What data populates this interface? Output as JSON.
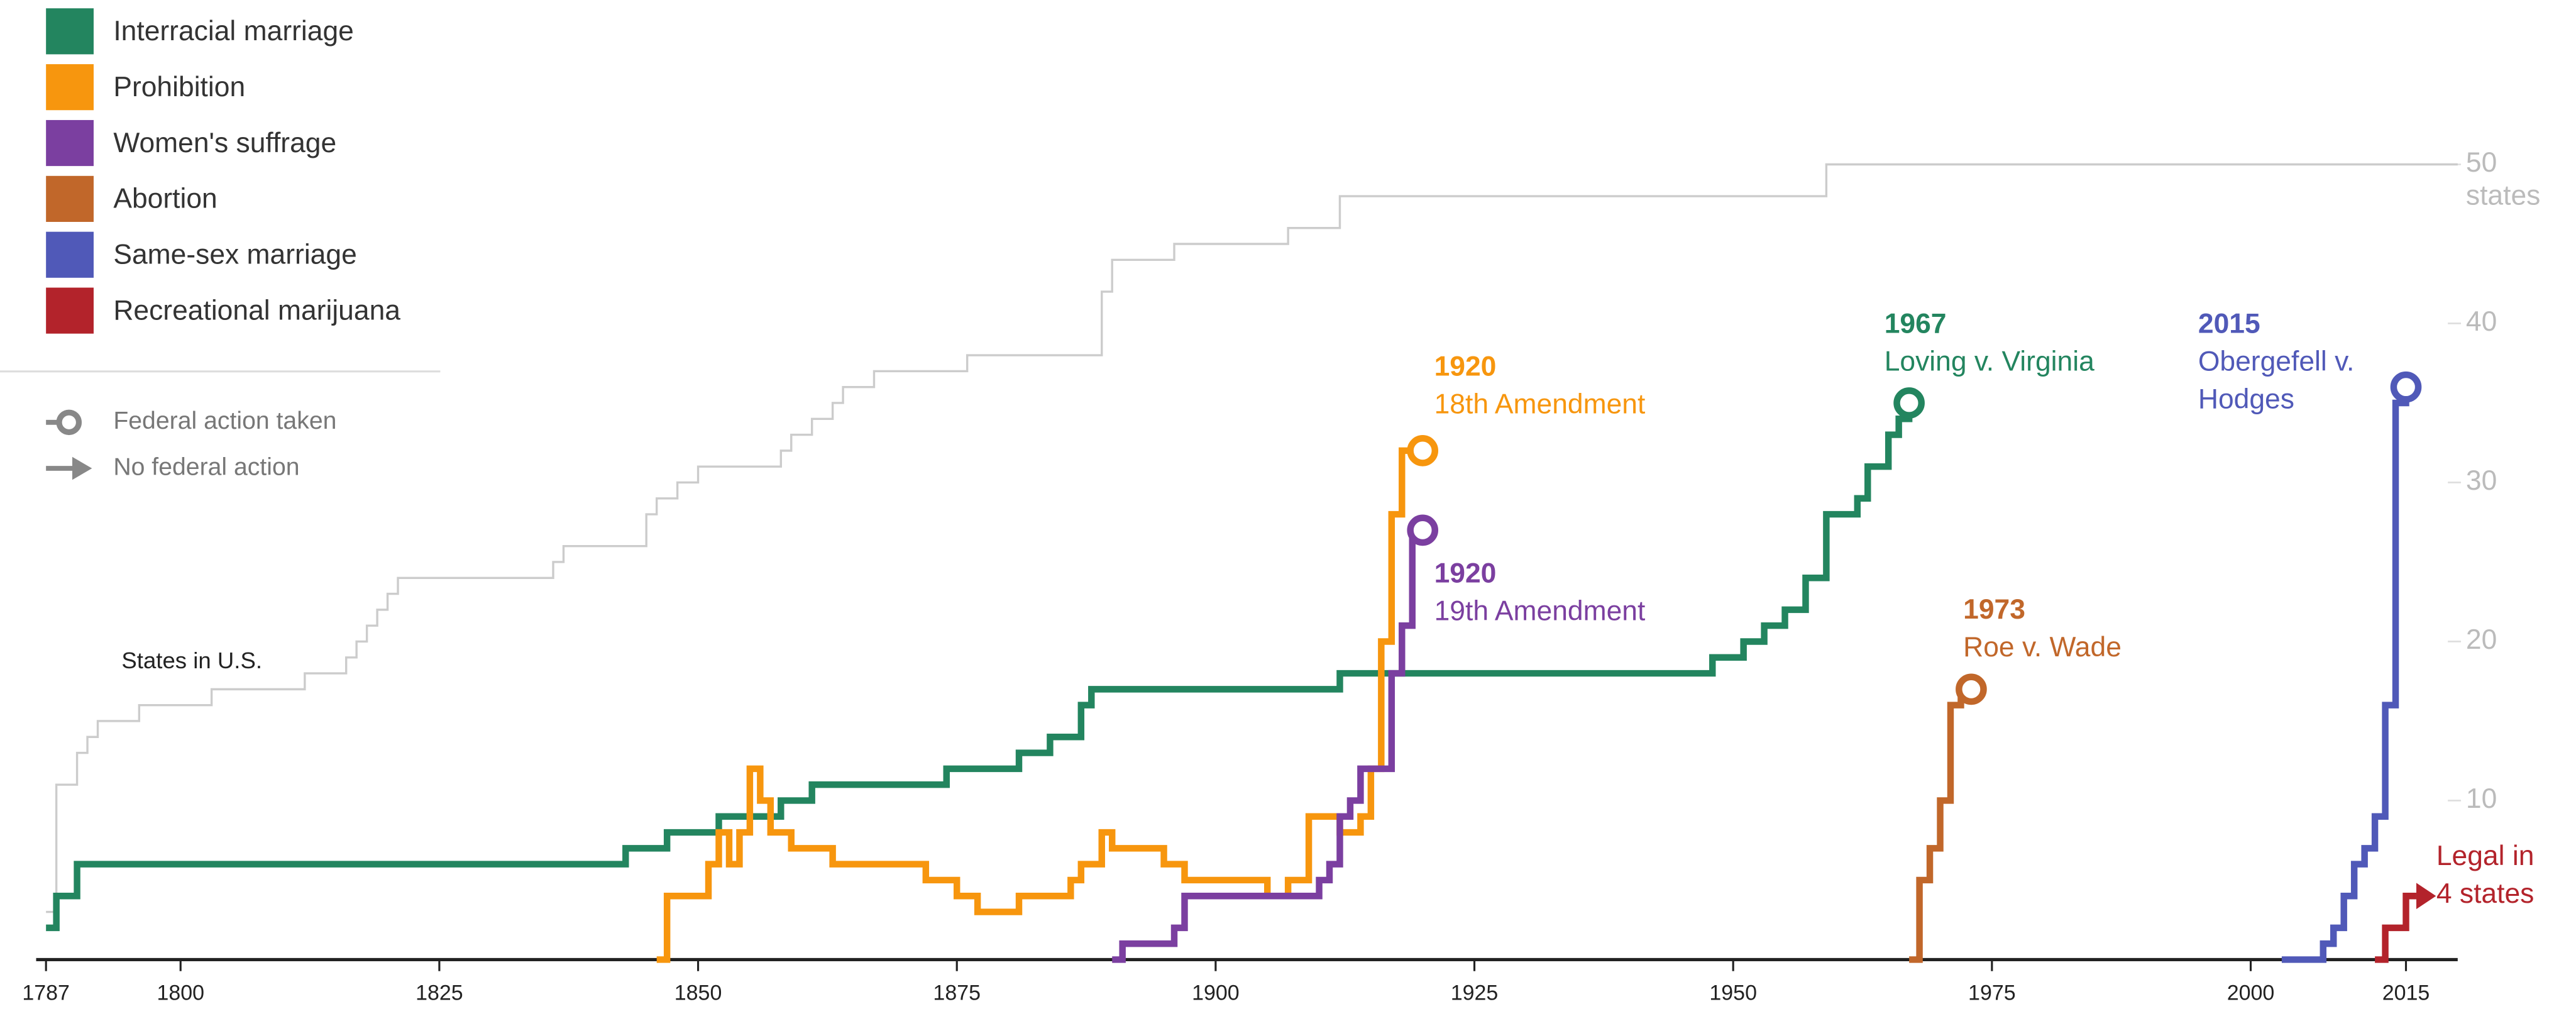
{
  "chart_data": {
    "type": "step",
    "xlim": [
      1787,
      2020
    ],
    "xticks": [
      1787,
      1800,
      1825,
      1850,
      1875,
      1900,
      1925,
      1950,
      1975,
      2000,
      2015
    ],
    "ylim": [
      0,
      50
    ],
    "yticks": [
      10,
      20,
      30,
      40,
      50
    ],
    "y_unit_label": "states",
    "legend_markers": [
      {
        "label": "Federal action taken",
        "marker": "circle"
      },
      {
        "label": "No federal action",
        "marker": "arrow"
      }
    ],
    "reference": {
      "name": "States in U.S.",
      "color": "#cccccc",
      "x": [
        1787,
        1788,
        1790,
        1791,
        1792,
        1796,
        1803,
        1812,
        1816,
        1817,
        1818,
        1819,
        1820,
        1821,
        1836,
        1837,
        1845,
        1846,
        1848,
        1850,
        1858,
        1859,
        1861,
        1863,
        1864,
        1867,
        1876,
        1889,
        1890,
        1896,
        1907,
        1912,
        1959,
        2020
      ],
      "values": [
        3,
        11,
        13,
        14,
        15,
        16,
        17,
        18,
        19,
        20,
        21,
        22,
        23,
        24,
        25,
        26,
        28,
        29,
        30,
        31,
        32,
        33,
        34,
        35,
        36,
        37,
        38,
        42,
        44,
        45,
        46,
        48,
        50,
        50
      ]
    },
    "series": [
      {
        "name": "Interracial marriage",
        "color": "#23855f",
        "end_marker": "circle",
        "annotation": [
          "1967",
          "Loving v. Virginia"
        ],
        "x": [
          1787,
          1788,
          1790,
          1843,
          1847,
          1852,
          1858,
          1861,
          1874,
          1881,
          1884,
          1887,
          1888,
          1912,
          1948,
          1951,
          1953,
          1955,
          1957,
          1959,
          1962,
          1963,
          1965,
          1966,
          1967
        ],
        "values": [
          2,
          4,
          6,
          7,
          8,
          9,
          10,
          11,
          12,
          13,
          14,
          16,
          17,
          18,
          19,
          20,
          21,
          22,
          24,
          28,
          29,
          31,
          33,
          34,
          35
        ]
      },
      {
        "name": "Prohibition",
        "color": "#f7960e",
        "end_marker": "circle",
        "annotation": [
          "1920",
          "18th Amendment"
        ],
        "x": [
          1846,
          1847,
          1851,
          1852,
          1853,
          1854,
          1855,
          1856,
          1857,
          1859,
          1863,
          1872,
          1875,
          1877,
          1881,
          1886,
          1887,
          1889,
          1890,
          1895,
          1897,
          1905,
          1907,
          1909,
          1912,
          1914,
          1915,
          1916,
          1917,
          1918,
          1920
        ],
        "values": [
          0,
          4,
          6,
          8,
          6,
          8,
          12,
          10,
          8,
          7,
          6,
          5,
          4,
          3,
          4,
          5,
          6,
          8,
          7,
          6,
          5,
          4,
          5,
          9,
          8,
          9,
          12,
          20,
          28,
          32,
          32
        ]
      },
      {
        "name": "Women's suffrage",
        "color": "#7b3fa0",
        "end_marker": "circle",
        "annotation": [
          "1920",
          "19th Amendment"
        ],
        "x": [
          1890,
          1891,
          1896,
          1897,
          1910,
          1911,
          1912,
          1913,
          1914,
          1917,
          1918,
          1919,
          1920
        ],
        "values": [
          0,
          1,
          2,
          4,
          5,
          6,
          9,
          10,
          12,
          18,
          21,
          27,
          27
        ]
      },
      {
        "name": "Abortion",
        "color": "#c1672a",
        "end_marker": "circle",
        "annotation": [
          "1973",
          "Roe v. Wade"
        ],
        "x": [
          1967,
          1968,
          1969,
          1970,
          1971,
          1972,
          1973
        ],
        "values": [
          0,
          5,
          7,
          10,
          16,
          17,
          17
        ]
      },
      {
        "name": "Same-sex marriage",
        "color": "#5059b8",
        "end_marker": "circle",
        "annotation": [
          "2015",
          "Obergefell v.",
          "Hodges"
        ],
        "x": [
          2003,
          2007,
          2008,
          2009,
          2010,
          2011,
          2012,
          2013,
          2014,
          2015
        ],
        "values": [
          0,
          1,
          2,
          4,
          6,
          7,
          9,
          16,
          35,
          36
        ]
      },
      {
        "name": "Recreational marijuana",
        "color": "#b3232b",
        "end_marker": "arrow",
        "annotation": [
          "Legal in",
          "4 states"
        ],
        "x": [
          2012,
          2013,
          2015,
          2016
        ],
        "values": [
          0,
          2,
          4,
          4
        ]
      }
    ]
  }
}
